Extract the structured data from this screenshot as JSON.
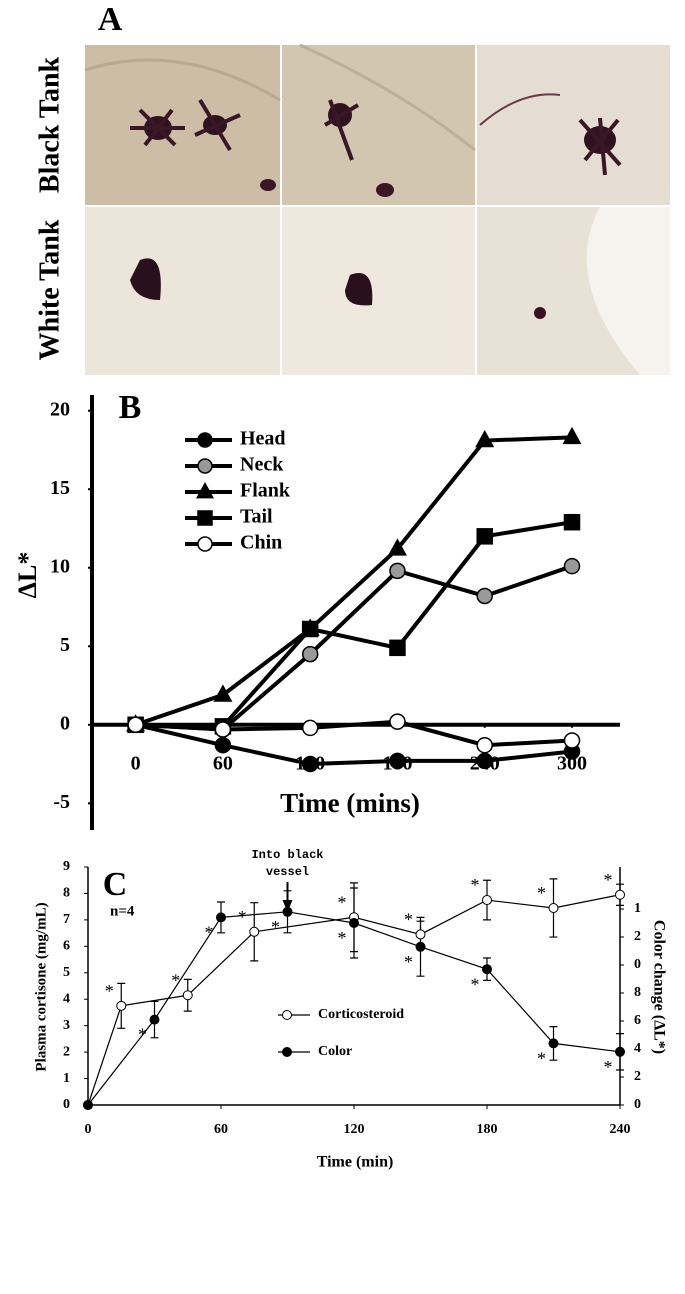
{
  "panel_a": {
    "label": "A",
    "rows": [
      "Black Tank",
      "White Tank"
    ]
  },
  "chart_data": [
    {
      "type": "line",
      "panel_label": "B",
      "xlabel": "Time (mins)",
      "ylabel": "ΔL*",
      "x": [
        0,
        60,
        120,
        180,
        240,
        300
      ],
      "xlim": [
        -30,
        333
      ],
      "ylim": [
        -6.7,
        21
      ],
      "xticks": [
        0,
        60,
        120,
        180,
        240,
        300
      ],
      "yticks": [
        -5,
        0,
        5,
        10,
        15,
        20
      ],
      "series": [
        {
          "name": "Head",
          "marker": "circle",
          "color": "#000000",
          "fill": "#000000",
          "values": [
            0,
            -1.3,
            -2.5,
            -2.3,
            -2.3,
            -1.7
          ]
        },
        {
          "name": "Neck",
          "marker": "circle",
          "color": "#000000",
          "fill": "#999999",
          "values": [
            0,
            -0.3,
            4.5,
            9.8,
            8.2,
            10.1
          ]
        },
        {
          "name": "Flank",
          "marker": "triangle",
          "color": "#000000",
          "fill": "#000000",
          "values": [
            0,
            1.9,
            6.1,
            11.2,
            18.1,
            18.3
          ]
        },
        {
          "name": "Tail",
          "marker": "square",
          "color": "#000000",
          "fill": "#000000",
          "values": [
            0,
            -0.1,
            6.1,
            4.9,
            12.0,
            12.9
          ]
        },
        {
          "name": "Chin",
          "marker": "circle",
          "color": "#000000",
          "fill": "#ffffff",
          "values": [
            0,
            -0.3,
            -0.2,
            0.2,
            -1.3,
            -1.0
          ]
        }
      ]
    },
    {
      "type": "line",
      "panel_label": "C",
      "xlabel": "Time (min)",
      "ylabel": "Plasma cortisone (mg/mL)",
      "y2label": "Color change (ΔL*)",
      "note": "n=4",
      "annotations": [
        {
          "text": [
            "Into black",
            "vessel"
          ],
          "x": 90
        }
      ],
      "xlim": [
        0,
        240
      ],
      "ylim": [
        0,
        9
      ],
      "y2lim": [
        0,
        17
      ],
      "xticks": [
        0,
        60,
        120,
        180,
        240
      ],
      "yticks": [
        0,
        1,
        2,
        3,
        4,
        5,
        6,
        7,
        8,
        9
      ],
      "y2ticks": [
        0,
        2,
        4,
        6,
        8,
        {
          "value": 10,
          "label": "0"
        },
        {
          "value": 12,
          "label": "2"
        },
        {
          "value": 14,
          "label": "1"
        }
      ],
      "series": [
        {
          "name": "Corticosteroid",
          "fill": "#ffffff",
          "color": "#000000",
          "x": [
            0,
            15,
            45,
            75,
            120,
            150,
            180,
            210,
            240
          ],
          "values": [
            0,
            3.75,
            4.15,
            6.55,
            7.1,
            6.45,
            7.75,
            7.45,
            7.95
          ],
          "errors": [
            0,
            0.85,
            0.6,
            1.1,
            1.3,
            0.5,
            0.75,
            1.1,
            0.4
          ],
          "point_labels": [
            null,
            "*",
            "*",
            "*",
            "*",
            "*",
            "*",
            "*",
            "*"
          ]
        },
        {
          "name": "Color",
          "fill": "#000000",
          "color": "#000000",
          "axis": "y2",
          "x": [
            0,
            30,
            60,
            90,
            120,
            150,
            180,
            210,
            240
          ],
          "values": [
            0,
            6.1,
            13.4,
            13.8,
            13.0,
            11.3,
            9.7,
            4.4,
            3.8
          ],
          "errors": [
            0,
            1.3,
            1.1,
            1.5,
            2.5,
            2.1,
            0.8,
            1.2,
            1.3
          ],
          "point_labels": [
            null,
            "*",
            "*",
            "*",
            "*",
            "*",
            "*",
            "*",
            "*"
          ]
        }
      ]
    }
  ]
}
